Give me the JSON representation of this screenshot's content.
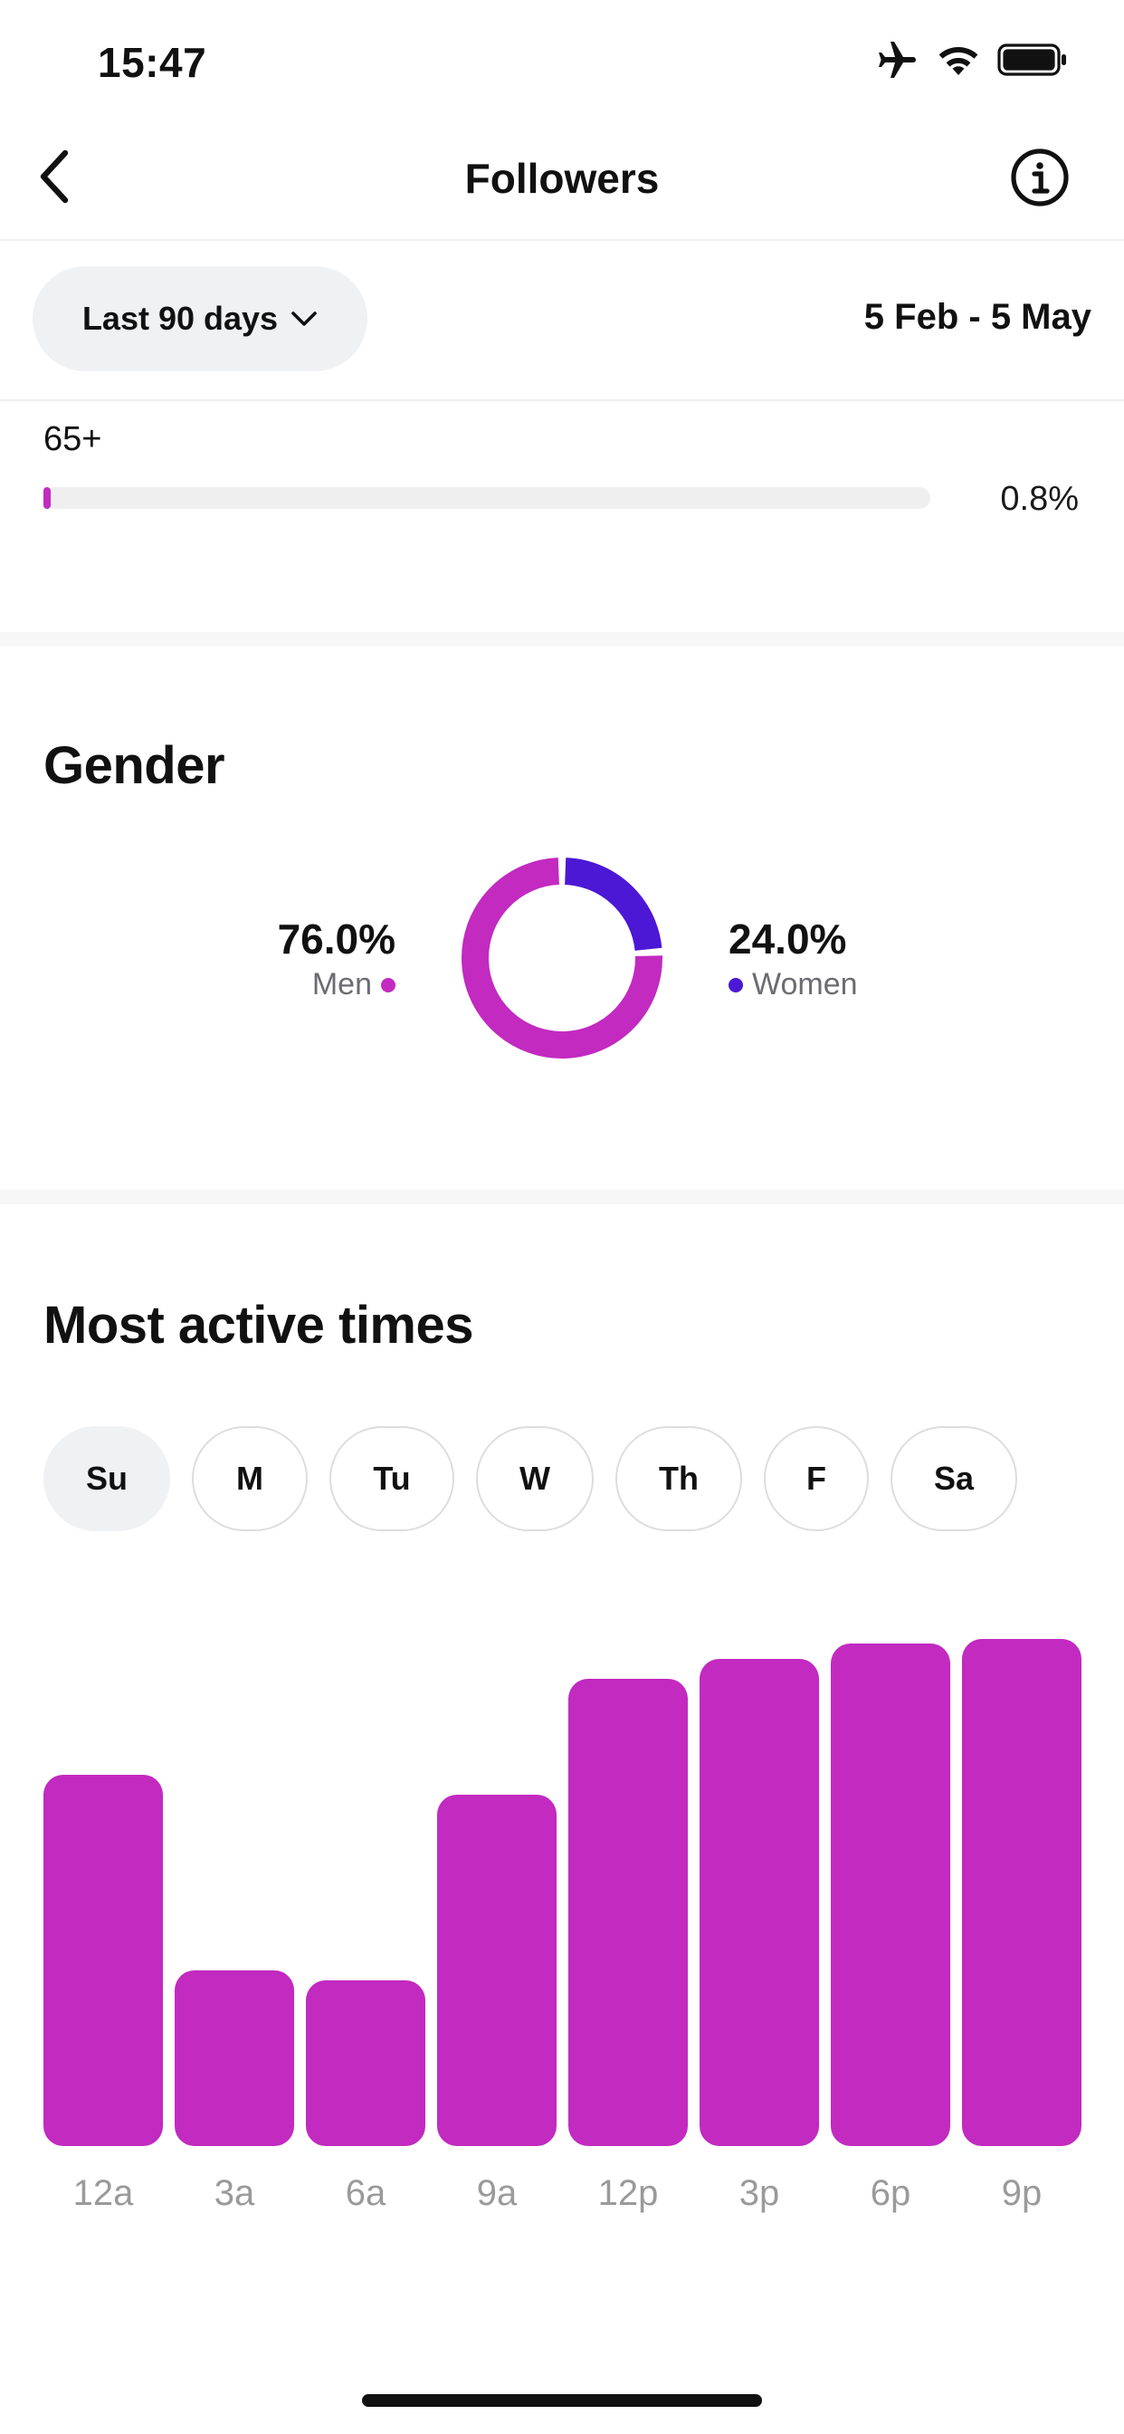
{
  "status_bar": {
    "time": "15:47"
  },
  "nav": {
    "title": "Followers"
  },
  "filter": {
    "range_label": "Last 90 days",
    "date_range": "5 Feb - 5 May"
  },
  "age": {
    "label": "65+",
    "value": "0.8%",
    "fraction": 0.008
  },
  "gender": {
    "title": "Gender",
    "men": {
      "value": "76.0%",
      "label": "Men",
      "color": "#c22ac0",
      "fraction": 0.76
    },
    "women": {
      "value": "24.0%",
      "label": "Women",
      "color": "#4d17d6",
      "fraction": 0.24
    }
  },
  "active_times": {
    "title": "Most active times",
    "days": [
      "Su",
      "M",
      "Tu",
      "W",
      "Th",
      "F",
      "Sa"
    ],
    "selected_day": "Su"
  },
  "chart_data": {
    "type": "bar",
    "categories": [
      "12a",
      "3a",
      "6a",
      "9a",
      "12p",
      "3p",
      "6p",
      "9p"
    ],
    "values": [
      74,
      35,
      33,
      70,
      93,
      97,
      100,
      101
    ],
    "ylim": [
      0,
      110
    ],
    "color": "#c22ac0",
    "grid": false
  }
}
